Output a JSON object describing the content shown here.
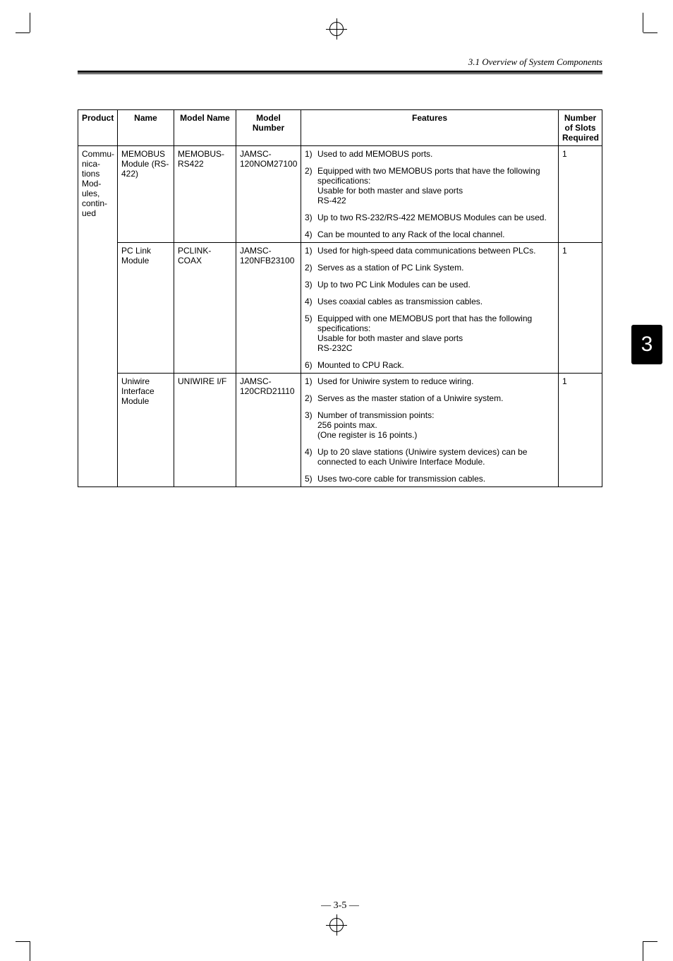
{
  "header": {
    "section_title": "3.1 Overview of System Components"
  },
  "side_tab": {
    "label": "3"
  },
  "page_number": "— 3-5 —",
  "table": {
    "columns": [
      "Product",
      "Name",
      "Model Name",
      "Model Number",
      "Features",
      "Number of Slots Required"
    ],
    "product_group": "Communications Modules, continued",
    "rows": [
      {
        "name": "MEMOBUS Module (RS-422)",
        "model_name": "MEMOBUS-RS422",
        "model_number": "JAMSC-120NOM27100",
        "slots": "1",
        "features": [
          "Used to add MEMOBUS ports.",
          "Equipped with two MEMOBUS ports that have the following specifications:\nUsable for both master and slave ports\nRS-422",
          "Up to two RS-232/RS-422 MEMOBUS Modules can be used.",
          "Can be mounted to any Rack of the local channel."
        ]
      },
      {
        "name": "PC Link Module",
        "model_name": "PCLINK-COAX",
        "model_number": "JAMSC-120NFB23100",
        "slots": "1",
        "features": [
          "Used for high-speed data communications between PLCs.",
          "Serves as a station of PC Link System.",
          "Up to two PC Link Modules can be used.",
          "Uses coaxial cables as transmission cables.",
          "Equipped with one MEMOBUS port that has the following specifications:\nUsable for both master and slave ports\nRS-232C",
          "Mounted to CPU Rack."
        ]
      },
      {
        "name": "Uniwire Interface Module",
        "model_name": "UNIWIRE I/F",
        "model_number": "JAMSC-120CRD21110",
        "slots": "1",
        "features": [
          "Used for Uniwire system to reduce wiring.",
          "Serves as the master station of a Uniwire system.",
          "Number of transmission points:\n256 points max.\n(One register is 16 points.)",
          "Up to 20 slave stations (Uniwire system devices) can be connected to each Uniwire Interface Module.",
          "Uses two-core cable for transmission cables."
        ]
      }
    ]
  }
}
